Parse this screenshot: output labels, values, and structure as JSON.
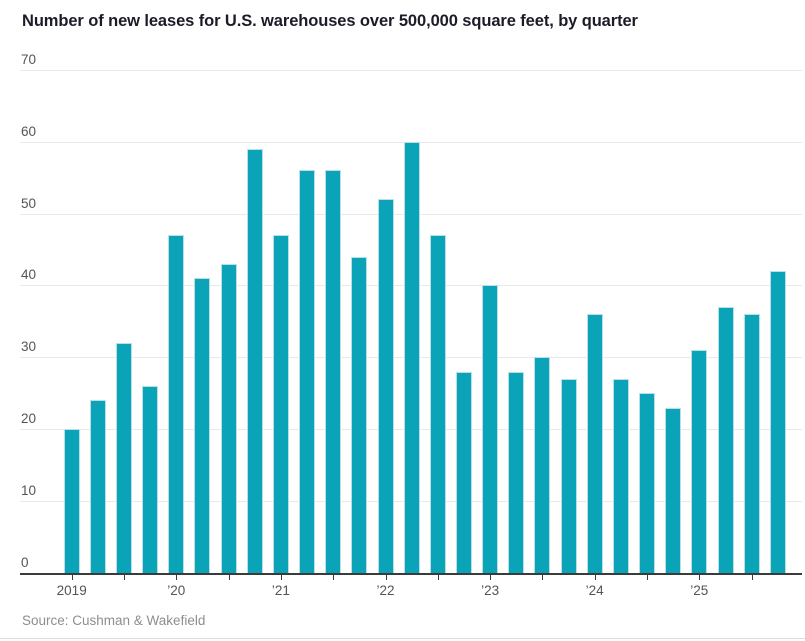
{
  "title": "Number of new leases for U.S. warehouses over 500,000 square feet, by quarter",
  "source": "Source: Cushman & Wakefield",
  "colors": {
    "bar": "#0ba3b8",
    "bar_edge": "#b9dfe8",
    "grid": "#e9e9e9",
    "axis": "#3b3b3b",
    "tick_label": "#57544e",
    "title": "#1c1c28",
    "source": "#8e8e8e"
  },
  "chart_data": {
    "type": "bar",
    "title": "Number of new leases for U.S. warehouses over 500,000 square feet, by quarter",
    "xlabel": "",
    "ylabel": "",
    "ylim": [
      0,
      70
    ],
    "y_ticks": [
      0,
      10,
      20,
      30,
      40,
      50,
      60,
      70
    ],
    "grid": "horizontal",
    "legend": "none",
    "categories": [
      "2019 Q1",
      "2019 Q2",
      "2019 Q3",
      "2019 Q4",
      "2020 Q1",
      "2020 Q2",
      "2020 Q3",
      "2020 Q4",
      "2021 Q1",
      "2021 Q2",
      "2021 Q3",
      "2021 Q4",
      "2022 Q1",
      "2022 Q2",
      "2022 Q3",
      "2022 Q4",
      "2023 Q1",
      "2023 Q2",
      "2023 Q3",
      "2023 Q4",
      "2024 Q1",
      "2024 Q2",
      "2024 Q3",
      "2024 Q4",
      "2025 Q1",
      "2025 Q2",
      "2025 Q3",
      "2025 Q4"
    ],
    "values": [
      20,
      24,
      32,
      26,
      47,
      41,
      43,
      59,
      47,
      56,
      56,
      44,
      52,
      60,
      47,
      28,
      40,
      28,
      30,
      27,
      36,
      27,
      25,
      23,
      31,
      37,
      36,
      42
    ],
    "x_tick_labels": [
      "2019",
      "’20",
      "’21",
      "’22",
      "’23",
      "’24",
      "’25"
    ],
    "source": "Source: Cushman & Wakefield"
  }
}
